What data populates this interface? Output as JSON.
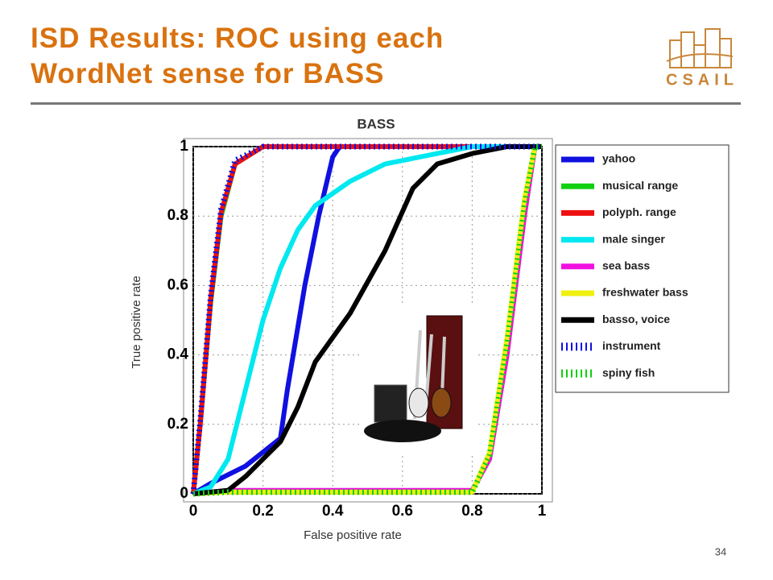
{
  "slide": {
    "title": "ISD Results: ROC using each WordNet sense for BASS",
    "logo": "CSAIL",
    "page_number": 34
  },
  "chart_data": {
    "type": "line",
    "title": "BASS",
    "x_label": "False positive rate",
    "y_label": "True positive rate",
    "xlim": [
      0,
      1
    ],
    "ylim": [
      0,
      1
    ],
    "xticks": [
      0,
      0.2,
      0.4,
      0.6,
      0.8,
      1
    ],
    "yticks": [
      0,
      0.2,
      0.4,
      0.6,
      0.8,
      1
    ],
    "grid": true,
    "legend": "right",
    "series": [
      {
        "name": "yahoo",
        "color": "#1010e0",
        "dashed": false,
        "x": [
          0,
          0.05,
          0.15,
          0.25,
          0.27,
          0.32,
          0.36,
          0.4,
          0.42,
          1
        ],
        "values": [
          0,
          0.03,
          0.08,
          0.16,
          0.3,
          0.6,
          0.8,
          0.97,
          1,
          1
        ]
      },
      {
        "name": "musical range",
        "color": "#10d010",
        "dashed": false,
        "x": [
          0,
          0.02,
          0.05,
          0.08,
          0.12,
          0.2,
          1
        ],
        "values": [
          0,
          0.2,
          0.55,
          0.8,
          0.95,
          1,
          1
        ]
      },
      {
        "name": "polyph. range",
        "color": "#ee1010",
        "dashed": false,
        "x": [
          0,
          0.02,
          0.05,
          0.08,
          0.12,
          0.2,
          1
        ],
        "values": [
          0,
          0.2,
          0.56,
          0.81,
          0.95,
          1,
          1
        ]
      },
      {
        "name": "male singer",
        "color": "#00e8f0",
        "dashed": false,
        "x": [
          0,
          0.05,
          0.1,
          0.15,
          0.2,
          0.25,
          0.3,
          0.35,
          0.45,
          0.55,
          0.7,
          0.8,
          1
        ],
        "values": [
          0,
          0.02,
          0.1,
          0.3,
          0.5,
          0.65,
          0.76,
          0.83,
          0.9,
          0.95,
          0.98,
          1,
          1
        ]
      },
      {
        "name": "sea bass",
        "color": "#f010e0",
        "dashed": false,
        "x": [
          0,
          0.1,
          0.8,
          0.85,
          0.9,
          0.95,
          0.98,
          1
        ],
        "values": [
          0,
          0.01,
          0.01,
          0.1,
          0.4,
          0.8,
          1,
          1
        ]
      },
      {
        "name": "freshwater bass",
        "color": "#f0f010",
        "dashed": false,
        "x": [
          0,
          0.1,
          0.8,
          0.85,
          0.9,
          0.95,
          0.98,
          1
        ],
        "values": [
          0,
          0.005,
          0.005,
          0.12,
          0.45,
          0.85,
          1,
          1
        ]
      },
      {
        "name": "basso, voice",
        "color": "#000000",
        "dashed": false,
        "x": [
          0,
          0.1,
          0.15,
          0.2,
          0.25,
          0.3,
          0.35,
          0.45,
          0.55,
          0.63,
          0.7,
          0.8,
          0.9,
          1
        ],
        "values": [
          0,
          0.01,
          0.05,
          0.1,
          0.15,
          0.25,
          0.38,
          0.52,
          0.7,
          0.88,
          0.95,
          0.98,
          1,
          1
        ]
      },
      {
        "name": "instrument",
        "color": "#1010e0",
        "dashed": true,
        "x": [
          0,
          0.02,
          0.05,
          0.08,
          0.12,
          0.2,
          1
        ],
        "values": [
          0,
          0.21,
          0.57,
          0.82,
          0.96,
          1,
          1
        ]
      },
      {
        "name": "spiny fish",
        "color": "#10d010",
        "dashed": true,
        "x": [
          0,
          0.1,
          0.8,
          0.85,
          0.9,
          0.95,
          0.98,
          1
        ],
        "values": [
          0,
          0.005,
          0.005,
          0.11,
          0.43,
          0.83,
          1,
          1
        ]
      }
    ]
  }
}
